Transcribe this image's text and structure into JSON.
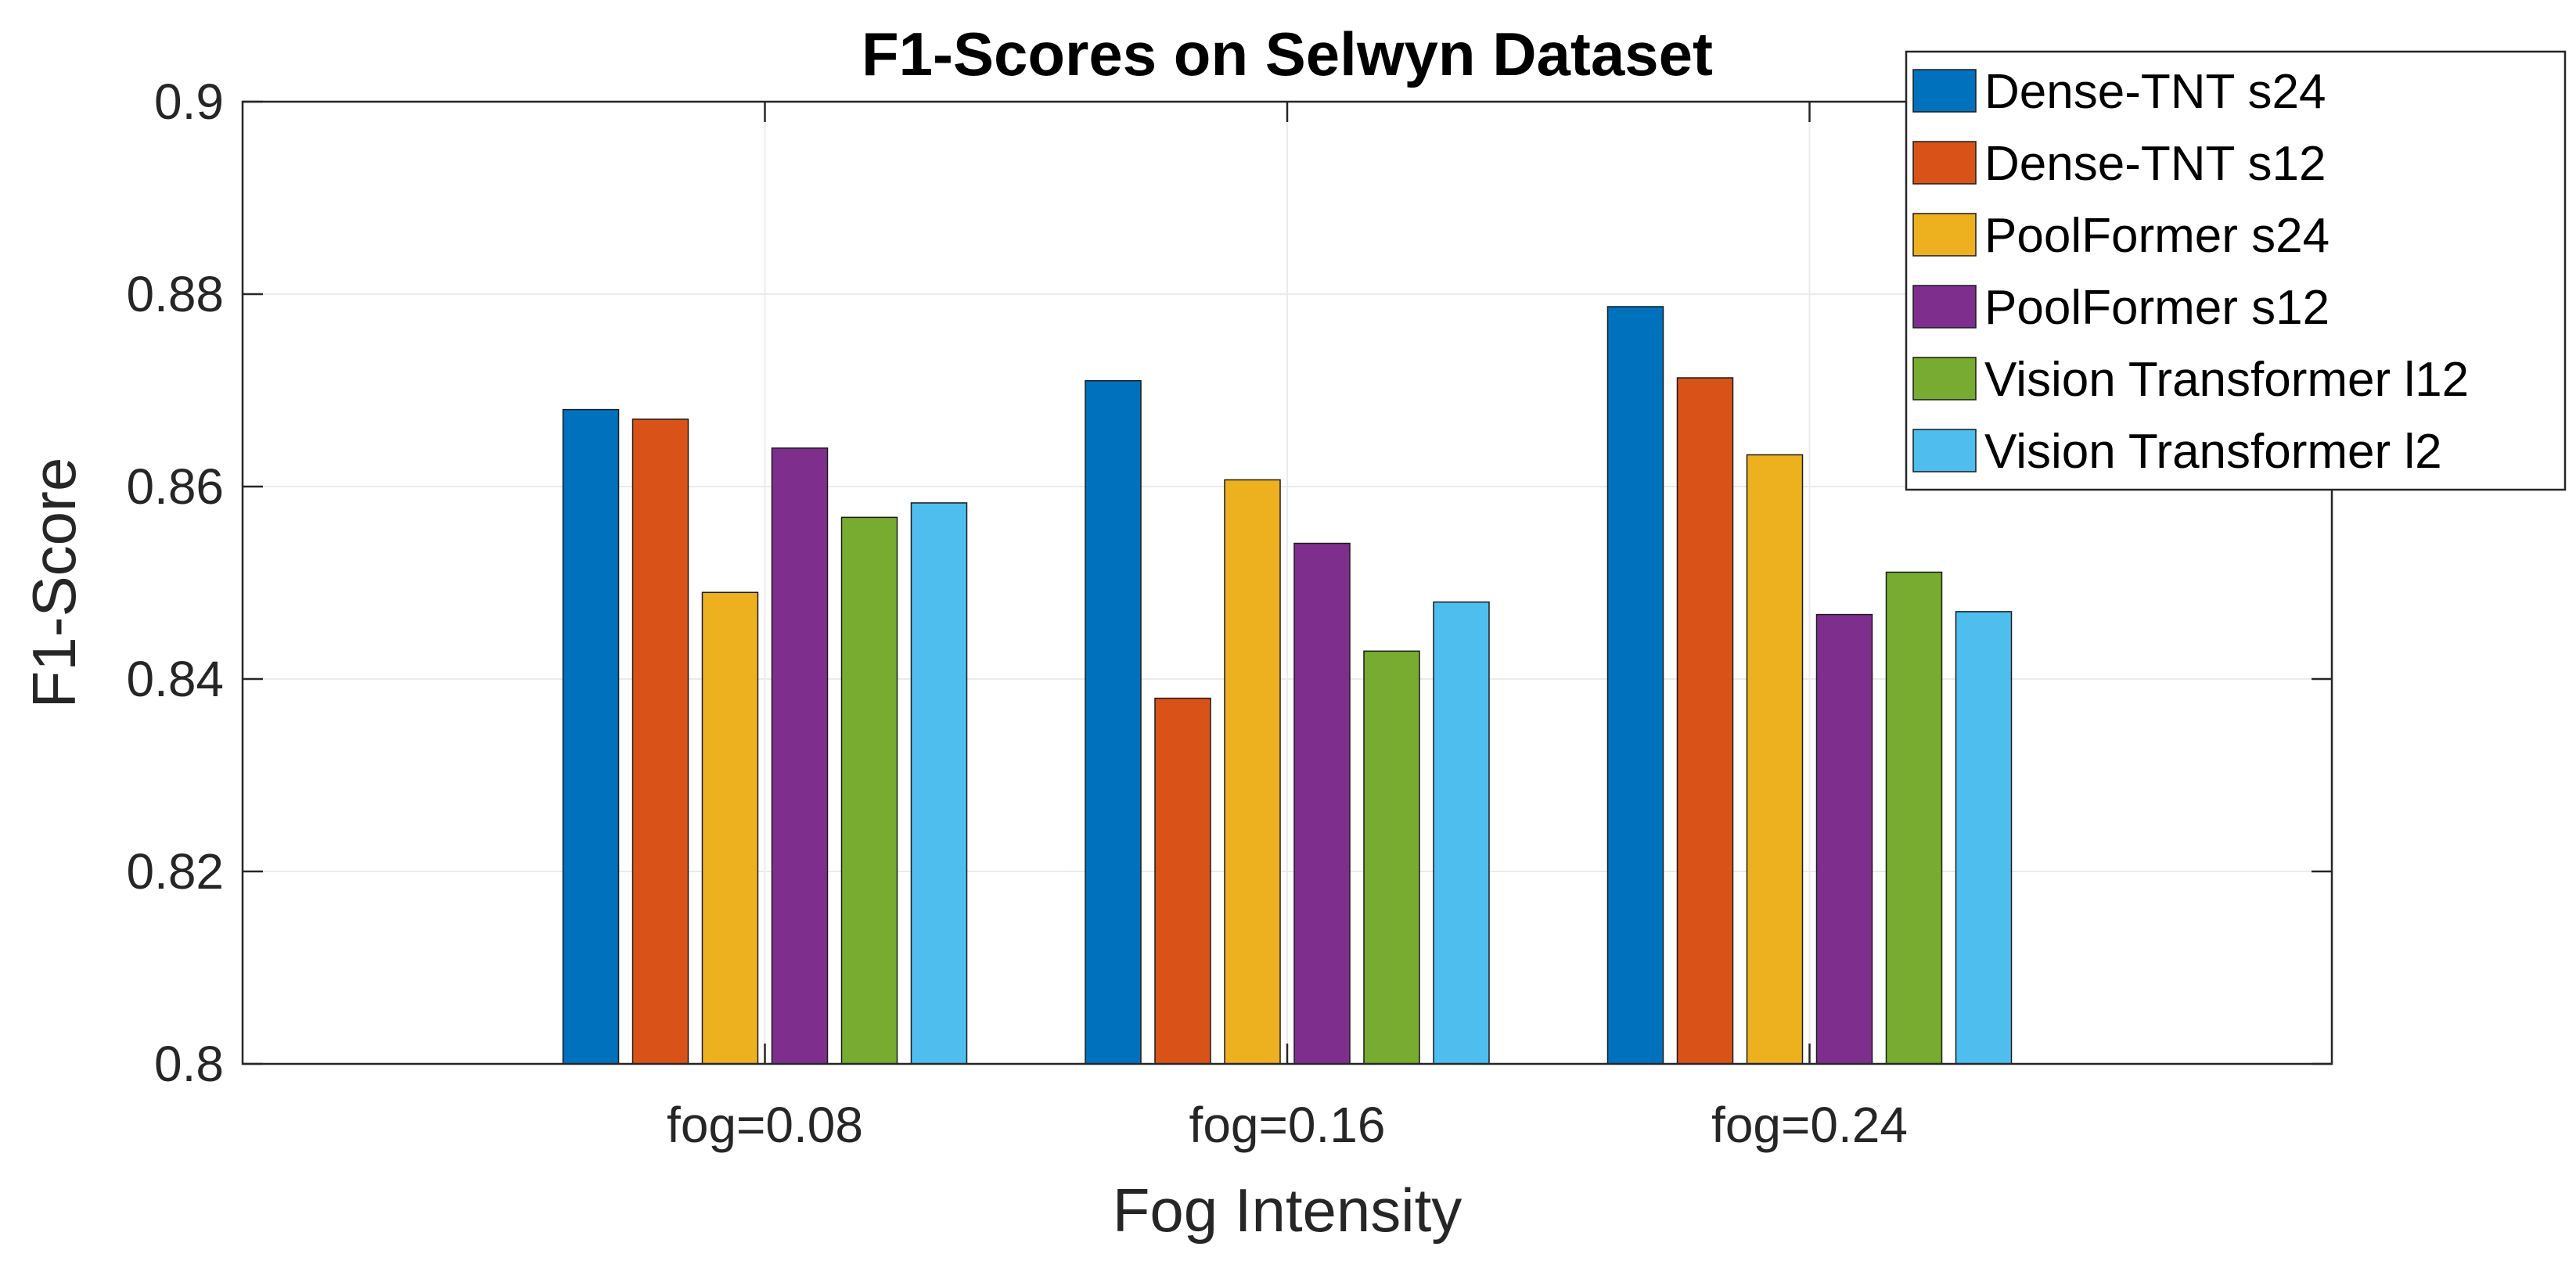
{
  "chart_data": {
    "type": "bar",
    "title": "F1-Scores on Selwyn Dataset",
    "xlabel": "Fog Intensity",
    "ylabel": "F1-Score",
    "categories": [
      "fog=0.08",
      "fog=0.16",
      "fog=0.24"
    ],
    "ylim": [
      0.8,
      0.9
    ],
    "yticks": [
      "0.8",
      "0.82",
      "0.84",
      "0.86",
      "0.88",
      "0.9"
    ],
    "grid": true,
    "legend_position": "top-right",
    "series": [
      {
        "name": "Dense-TNT s24",
        "color": "#0072BD",
        "values": [
          0.868,
          0.871,
          0.8787
        ]
      },
      {
        "name": "Dense-TNT s12",
        "color": "#D95319",
        "values": [
          0.867,
          0.838,
          0.8713
        ]
      },
      {
        "name": "PoolFormer s24",
        "color": "#EDB120",
        "values": [
          0.849,
          0.8607,
          0.8633
        ]
      },
      {
        "name": "PoolFormer s12",
        "color": "#7E2F8E",
        "values": [
          0.864,
          0.8541,
          0.8467
        ]
      },
      {
        "name": "Vision Transformer l12",
        "color": "#77AC30",
        "values": [
          0.8568,
          0.8429,
          0.8511
        ]
      },
      {
        "name": "Vision Transformer l2",
        "color": "#4DBEEE",
        "values": [
          0.8583,
          0.848,
          0.847
        ]
      }
    ]
  }
}
